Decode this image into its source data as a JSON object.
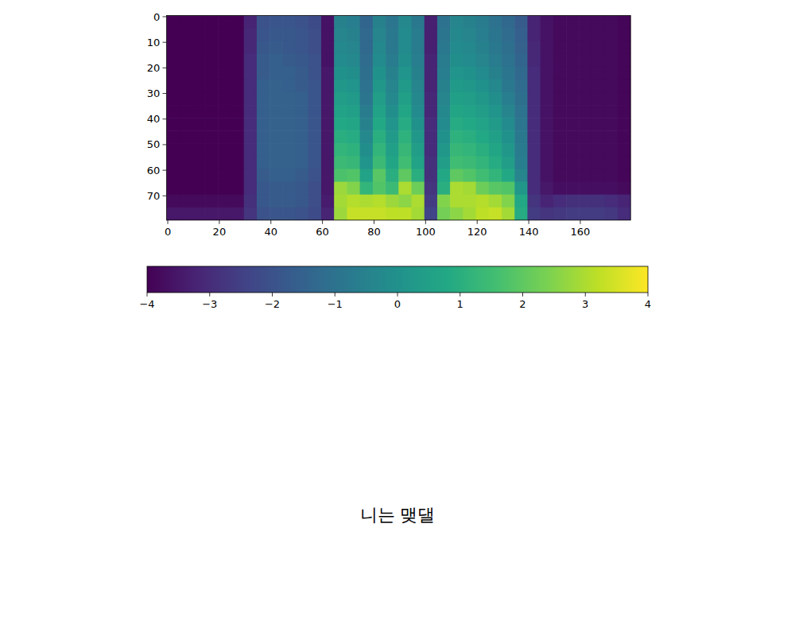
{
  "chart_data": {
    "type": "heatmap",
    "caption": "니는 맺댈",
    "xlim": [
      -0.5,
      179.5
    ],
    "ylim": [
      79.5,
      -0.5
    ],
    "xticks": [
      0,
      20,
      40,
      60,
      80,
      100,
      120,
      140,
      160
    ],
    "yticks": [
      0,
      10,
      20,
      30,
      40,
      50,
      60,
      70
    ],
    "x_edges": [
      -0.5,
      4.5,
      9.5,
      14.5,
      19.5,
      24.5,
      29.5,
      34.5,
      39.5,
      44.5,
      49.5,
      54.5,
      59.5,
      64.5,
      69.5,
      74.5,
      79.5,
      84.5,
      89.5,
      94.5,
      99.5,
      104.5,
      109.5,
      114.5,
      119.5,
      124.5,
      129.5,
      134.5,
      139.5,
      144.5,
      149.5,
      154.5,
      159.5,
      164.5,
      169.5,
      174.5,
      179.5
    ],
    "y_edges": [
      -0.5,
      4.5,
      9.5,
      14.5,
      19.5,
      24.5,
      29.5,
      34.5,
      39.5,
      44.5,
      49.5,
      54.5,
      59.5,
      64.5,
      69.5,
      74.5,
      79.5
    ],
    "cells": [
      [
        -4,
        -4,
        -4,
        -4,
        -4,
        -4,
        -3.2,
        -2,
        -1.9,
        -1.9,
        -2,
        -2.2,
        -3.6,
        -0.5,
        -0.6,
        -1.4,
        -0.5,
        -0.9,
        -0.3,
        -0.8,
        -3.3,
        -1,
        -0.4,
        -0.5,
        -0.7,
        -1,
        -1.3,
        -1.7,
        -3.2,
        -3.6,
        -3.8,
        -3.8,
        -3.8,
        -3.8,
        -3.8,
        -3.9
      ],
      [
        -4,
        -4,
        -4,
        -4,
        -4,
        -4,
        -3.1,
        -1.9,
        -1.8,
        -1.8,
        -1.9,
        -2.1,
        -3.6,
        -0.4,
        -0.5,
        -1.3,
        -0.4,
        -0.8,
        -0.2,
        -0.7,
        -3.3,
        -0.9,
        -0.3,
        -0.4,
        -0.6,
        -0.9,
        -1.2,
        -1.6,
        -3.2,
        -3.6,
        -3.8,
        -3.8,
        -3.8,
        -3.8,
        -3.8,
        -3.9
      ],
      [
        -4,
        -4,
        -4,
        -4,
        -4,
        -4,
        -3.1,
        -1.8,
        -1.7,
        -1.8,
        -1.9,
        -2.1,
        -3.6,
        -0.3,
        -0.4,
        -1.3,
        -0.3,
        -0.8,
        -0.2,
        -0.7,
        -3.3,
        -0.8,
        -0.2,
        -0.3,
        -0.5,
        -0.8,
        -1.1,
        -1.5,
        -3.1,
        -3.6,
        -3.8,
        -3.8,
        -3.8,
        -3.8,
        -3.8,
        -3.9
      ],
      [
        -4,
        -4,
        -4,
        -4,
        -4,
        -4,
        -3,
        -1.7,
        -1.6,
        -1.7,
        -1.8,
        -2,
        -3.6,
        -0.2,
        -0.3,
        -1.2,
        -0.2,
        -0.7,
        -0.1,
        -0.6,
        -3.2,
        -0.7,
        -0.1,
        -0.2,
        -0.4,
        -0.7,
        -1,
        -1.4,
        -3.1,
        -3.6,
        -3.8,
        -3.8,
        -3.8,
        -3.8,
        -3.8,
        -3.9
      ],
      [
        -4,
        -4,
        -4,
        -4,
        -4,
        -4,
        -3,
        -1.7,
        -1.6,
        -1.6,
        -1.7,
        -2,
        -3.5,
        0,
        -0.1,
        -1.1,
        0,
        -0.5,
        0.1,
        -0.5,
        -3.2,
        -0.6,
        0.1,
        0,
        -0.2,
        -0.5,
        -0.9,
        -1.3,
        -3,
        -3.6,
        -3.8,
        -3.8,
        -3.8,
        -3.8,
        -3.8,
        -3.9
      ],
      [
        -4,
        -4,
        -4,
        -4,
        -4,
        -4,
        -3,
        -1.6,
        -1.5,
        -1.6,
        -1.7,
        -1.9,
        -3.5,
        0.2,
        0.1,
        -1,
        0.2,
        -0.4,
        0.3,
        -0.4,
        -3.2,
        -0.5,
        0.3,
        0.2,
        0,
        -0.3,
        -0.8,
        -1.2,
        -3,
        -3.6,
        -3.8,
        -3.8,
        -3.8,
        -3.8,
        -3.8,
        -3.9
      ],
      [
        -4,
        -4,
        -4,
        -4,
        -4,
        -4,
        -3,
        -1.6,
        -1.5,
        -1.5,
        -1.6,
        -1.9,
        -3.5,
        0.4,
        0.3,
        -0.9,
        0.4,
        -0.3,
        0.5,
        -0.3,
        -3.1,
        -0.4,
        0.5,
        0.4,
        0.2,
        -0.1,
        -0.6,
        -1.1,
        -3,
        -3.6,
        -3.8,
        -3.8,
        -3.8,
        -3.8,
        -3.8,
        -3.9
      ],
      [
        -4,
        -4,
        -4,
        -4,
        -4,
        -4,
        -3,
        -1.6,
        -1.5,
        -1.5,
        -1.6,
        -1.9,
        -3.5,
        0.6,
        0.5,
        -0.7,
        0.6,
        -0.1,
        0.7,
        -0.2,
        -3.1,
        -0.3,
        0.7,
        0.6,
        0.4,
        0.1,
        -0.4,
        -1,
        -3,
        -3.6,
        -3.8,
        -3.8,
        -3.8,
        -3.8,
        -3.8,
        -3.9
      ],
      [
        -4,
        -4,
        -4,
        -4,
        -4,
        -4,
        -3,
        -1.6,
        -1.5,
        -1.5,
        -1.6,
        -1.9,
        -3.5,
        0.8,
        0.7,
        -0.5,
        0.8,
        0.1,
        0.9,
        0,
        -3,
        -0.2,
        0.9,
        0.8,
        0.6,
        0.3,
        -0.2,
        -0.9,
        -3,
        -3.6,
        -3.8,
        -3.8,
        -3.8,
        -3.8,
        -3.8,
        -3.9
      ],
      [
        -4,
        -4,
        -4,
        -4,
        -4,
        -4,
        -3,
        -1.6,
        -1.5,
        -1.5,
        -1.6,
        -1.9,
        -3.5,
        1,
        0.9,
        -0.3,
        1,
        0.3,
        1.1,
        0.2,
        -3,
        0,
        1.1,
        1,
        0.8,
        0.5,
        0,
        -0.8,
        -3,
        -3.6,
        -3.8,
        -3.8,
        -3.8,
        -3.8,
        -3.8,
        -3.9
      ],
      [
        -4,
        -4,
        -4,
        -4,
        -4,
        -4,
        -3,
        -1.6,
        -1.5,
        -1.5,
        -1.6,
        -1.9,
        -3.5,
        1.2,
        1.1,
        -0.1,
        1.2,
        0.5,
        1.3,
        0.4,
        -3,
        0.2,
        1.3,
        1.2,
        1,
        0.7,
        0.2,
        -0.7,
        -3,
        -3.6,
        -3.8,
        -3.8,
        -3.8,
        -3.8,
        -3.8,
        -3.9
      ],
      [
        -4,
        -4,
        -4,
        -4,
        -4,
        -4,
        -3,
        -1.6,
        -1.5,
        -1.5,
        -1.6,
        -1.9,
        -3.5,
        1.4,
        1.3,
        0.1,
        1.4,
        0.7,
        1.5,
        0.6,
        -2.9,
        0.4,
        1.5,
        1.4,
        1.2,
        0.9,
        0.4,
        -0.6,
        -3,
        -3.6,
        -3.8,
        -3.8,
        -3.8,
        -3.8,
        -3.8,
        -3.9
      ],
      [
        -4,
        -4,
        -4,
        -4,
        -4,
        -4,
        -3,
        -1.7,
        -1.6,
        -1.6,
        -1.7,
        -2,
        -3.5,
        1.7,
        1.8,
        0.6,
        1.9,
        1,
        2,
        1,
        -2.9,
        0.8,
        2,
        1.8,
        1.5,
        1.2,
        0.8,
        -0.4,
        -3,
        -3.6,
        -3.8,
        -3.8,
        -3.8,
        -3.8,
        -3.8,
        -3.9
      ],
      [
        -4,
        -4,
        -4,
        -4,
        -4,
        -4,
        -3,
        -1.8,
        -1.7,
        -1.7,
        -1.8,
        -2.1,
        -3.5,
        2.8,
        2.5,
        1.2,
        1.8,
        1.4,
        3,
        2.2,
        -2.8,
        1,
        3,
        2.9,
        2.2,
        1.9,
        1.8,
        0.2,
        -3,
        -3.5,
        -3.7,
        -3.7,
        -3.7,
        -3.7,
        -3.7,
        -3.8
      ],
      [
        -3.8,
        -3.8,
        -3.8,
        -3.8,
        -3.8,
        -3.8,
        -2.9,
        -1.8,
        -1.7,
        -1.7,
        -1.8,
        -2.1,
        -3.4,
        2.9,
        3.1,
        3,
        3.1,
        2.8,
        2.6,
        3,
        -2.6,
        2.5,
        3,
        3,
        3.1,
        2.9,
        2.5,
        0.8,
        -2.8,
        -3.2,
        -3,
        -2.9,
        -2.9,
        -2.9,
        -3,
        -3.2
      ],
      [
        -3.5,
        -3.5,
        -3.5,
        -3.5,
        -3.5,
        -3.5,
        -2.8,
        -2,
        -1.9,
        -1.9,
        -2,
        -2.2,
        -3.2,
        2.8,
        3.3,
        3.3,
        3.3,
        3.2,
        3.2,
        2.9,
        -2.4,
        2.3,
        2.6,
        2.9,
        3.2,
        3.3,
        2.9,
        0.9,
        -2.6,
        -2.8,
        -2.7,
        -2.6,
        -2.6,
        -2.6,
        -2.7,
        -3
      ]
    ],
    "color_range": [
      -4,
      4
    ],
    "color_ticks": [
      {
        "value": -4,
        "label": "−4"
      },
      {
        "value": -3,
        "label": "−3"
      },
      {
        "value": -2,
        "label": "−2"
      },
      {
        "value": -1,
        "label": "−1"
      },
      0,
      1,
      2,
      3,
      4
    ]
  }
}
